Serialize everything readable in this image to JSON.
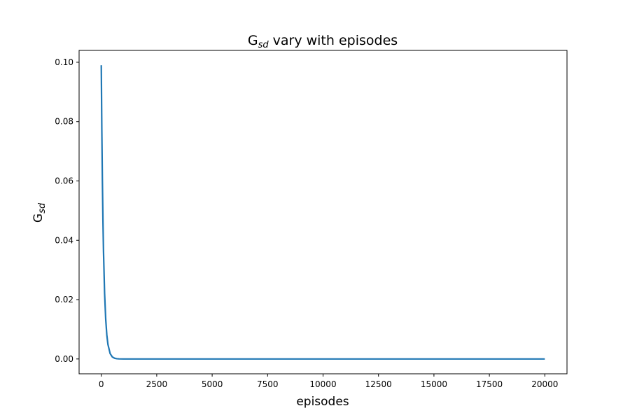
{
  "chart_data": {
    "type": "line",
    "title_main": "G",
    "title_sub": "sd",
    "title_rest": " vary with episodes",
    "xlabel": "episodes",
    "ylabel_main": "G",
    "ylabel_sub": "sd",
    "xlim": [
      -1000,
      21000
    ],
    "ylim": [
      -0.005,
      0.104
    ],
    "xticks": [
      0,
      2500,
      5000,
      7500,
      10000,
      12500,
      15000,
      17500,
      20000
    ],
    "xtick_labels": [
      "0",
      "2500",
      "5000",
      "7500",
      "10000",
      "12500",
      "15000",
      "17500",
      "20000"
    ],
    "yticks": [
      0.0,
      0.02,
      0.04,
      0.06,
      0.08,
      0.1
    ],
    "ytick_labels": [
      "0.00",
      "0.02",
      "0.04",
      "0.06",
      "0.08",
      "0.10"
    ],
    "series": [
      {
        "color": "#1f77b4",
        "x": [
          0,
          25,
          50,
          75,
          100,
          150,
          200,
          250,
          300,
          400,
          500,
          600,
          700,
          800,
          1000,
          1500,
          2000,
          5000,
          10000,
          15000,
          20000
        ],
        "y": [
          0.099,
          0.0772,
          0.0601,
          0.0468,
          0.0364,
          0.0221,
          0.0134,
          0.0081,
          0.0049,
          0.0018,
          0.00067,
          0.00025,
          9e-05,
          3e-05,
          0.0,
          0.0,
          0.0,
          0.0,
          0.0,
          0.0,
          0.0
        ]
      }
    ]
  }
}
